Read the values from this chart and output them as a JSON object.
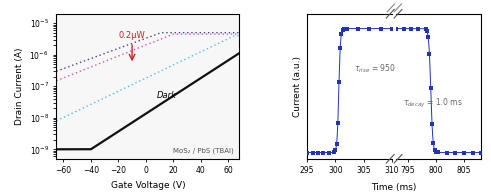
{
  "panel1": {
    "xlabel": "Gate Voltage (V)",
    "ylabel": "Drain Current (A)",
    "annotation_label": "MoS₂ / PbS (TBAI)",
    "arrow_label": "0.2μW",
    "dark_label": "Dark",
    "xlim": [
      -65,
      68
    ],
    "ylim_log": [
      -9.3,
      -4.7
    ],
    "dark_color": "#111111",
    "dark_lw": 1.6,
    "light_colors": [
      "#55bbee",
      "#cc55cc",
      "#444488"
    ],
    "light_lw": 1.0,
    "arrow_color": "#cc2222",
    "annotation_color": "#555555"
  },
  "panel2": {
    "xlabel": "Time (ms)",
    "ylabel": "Current (a.u.)",
    "tau_rise_text": "τᵣᴵₛₑ = 950 μs",
    "tau_decay_text": "τᵈᵉᶜᵃʸ = 1.0 ms",
    "xlim1": [
      295,
      310
    ],
    "xlim2": [
      793,
      808
    ],
    "line_color": "#2233bb",
    "marker": "s",
    "markersize": 2.8,
    "bg_color": "#ffffff"
  },
  "fig_bg": "#ffffff",
  "panel1_bg": "#f7f7f7"
}
